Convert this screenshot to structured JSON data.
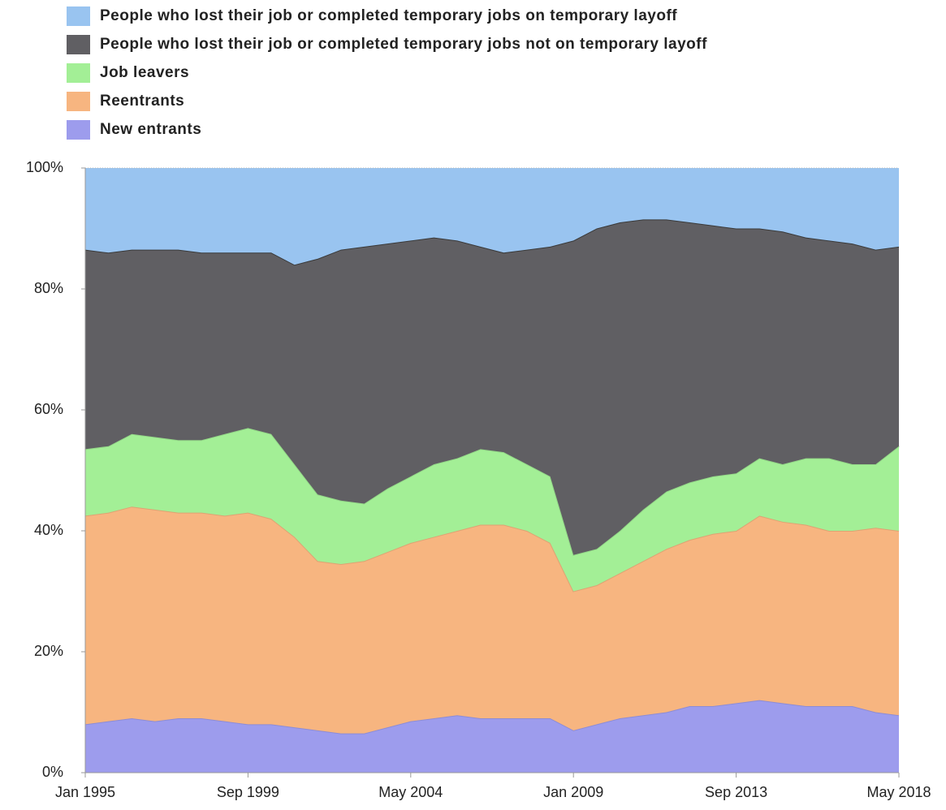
{
  "chart_data": {
    "type": "stacked_area",
    "categories": [
      "Jan 1995",
      "Sep 1995",
      "May 1996",
      "Jan 1997",
      "Sep 1997",
      "May 1998",
      "Jan 1999",
      "Sep 1999",
      "May 2000",
      "Jan 2001",
      "Sep 2001",
      "May 2002",
      "Jan 2003",
      "Sep 2003",
      "May 2004",
      "Jan 2005",
      "Sep 2005",
      "May 2006",
      "Jan 2007",
      "Sep 2007",
      "May 2008",
      "Jan 2009",
      "Sep 2009",
      "May 2010",
      "Jan 2011",
      "Sep 2011",
      "May 2012",
      "Jan 2013",
      "Sep 2013",
      "May 2014",
      "Jan 2015",
      "Sep 2015",
      "May 2016",
      "Jan 2017",
      "Sep 2017",
      "May 2018"
    ],
    "series": [
      {
        "name": "People who lost their job or completed temporary jobs on temporary layoff",
        "color": "#99c4f0",
        "values": [
          13.5,
          14,
          13.5,
          13.5,
          13.5,
          14,
          14,
          14,
          14,
          16,
          15,
          13.5,
          13,
          12.5,
          12,
          11.5,
          12,
          13,
          14,
          13.5,
          13,
          12,
          10,
          9,
          8.5,
          8.5,
          9,
          9.5,
          10,
          10,
          10.5,
          11.5,
          12,
          12.5,
          13.5,
          13
        ]
      },
      {
        "name": "People who lost their job or completed temporary jobs not on temporary layoff",
        "color": "#605f63",
        "values": [
          33,
          32,
          30.5,
          31,
          31.5,
          31,
          30,
          29,
          30,
          33,
          39,
          41.5,
          42.5,
          40.5,
          39,
          37.5,
          36,
          33.5,
          33,
          35.5,
          38,
          52,
          53,
          51,
          48,
          45,
          43,
          41.5,
          40.5,
          38,
          38.5,
          36.5,
          36,
          36.5,
          35.5,
          33
        ]
      },
      {
        "name": "Job leavers",
        "color": "#a3ef96",
        "values": [
          11,
          11,
          12,
          12,
          12,
          12,
          13.5,
          14,
          14,
          12,
          11,
          10.5,
          9.5,
          10.5,
          11,
          12,
          12,
          12.5,
          12,
          11,
          11,
          6,
          6,
          7,
          8.5,
          9.5,
          9.5,
          9.5,
          9.5,
          9.5,
          9.5,
          11,
          12,
          11,
          10.5,
          14
        ]
      },
      {
        "name": "Reentrants",
        "color": "#f7b580",
        "values": [
          34.5,
          34.5,
          35,
          35,
          34,
          34,
          34,
          35,
          34,
          31.5,
          28,
          28,
          28.5,
          29,
          29.5,
          30,
          30.5,
          32,
          32,
          31,
          29,
          23,
          23,
          24,
          25.5,
          27,
          27.5,
          28.5,
          28.5,
          30.5,
          30,
          30,
          29,
          29,
          30.5,
          30.5
        ]
      },
      {
        "name": "New entrants",
        "color": "#9d9ced",
        "values": [
          8,
          8.5,
          9,
          8.5,
          9,
          9,
          8.5,
          8,
          8,
          7.5,
          7,
          6.5,
          6.5,
          7.5,
          8.5,
          9,
          9.5,
          9,
          9,
          9,
          9,
          7,
          8,
          9,
          9.5,
          10,
          11,
          11,
          11.5,
          12,
          11.5,
          11,
          11,
          11,
          10,
          9.5
        ]
      }
    ],
    "xticks": [
      "Jan 1995",
      "Sep 1999",
      "May 2004",
      "Jan 2009",
      "Sep 2013",
      "May 2018"
    ],
    "ylim": [
      0,
      100
    ],
    "yticks": [
      {
        "value": 0,
        "label": "0%"
      },
      {
        "value": 20,
        "label": "20%"
      },
      {
        "value": 40,
        "label": "40%"
      },
      {
        "value": 60,
        "label": "60%"
      },
      {
        "value": 80,
        "label": "80%"
      },
      {
        "value": 100,
        "label": "100%"
      }
    ]
  }
}
